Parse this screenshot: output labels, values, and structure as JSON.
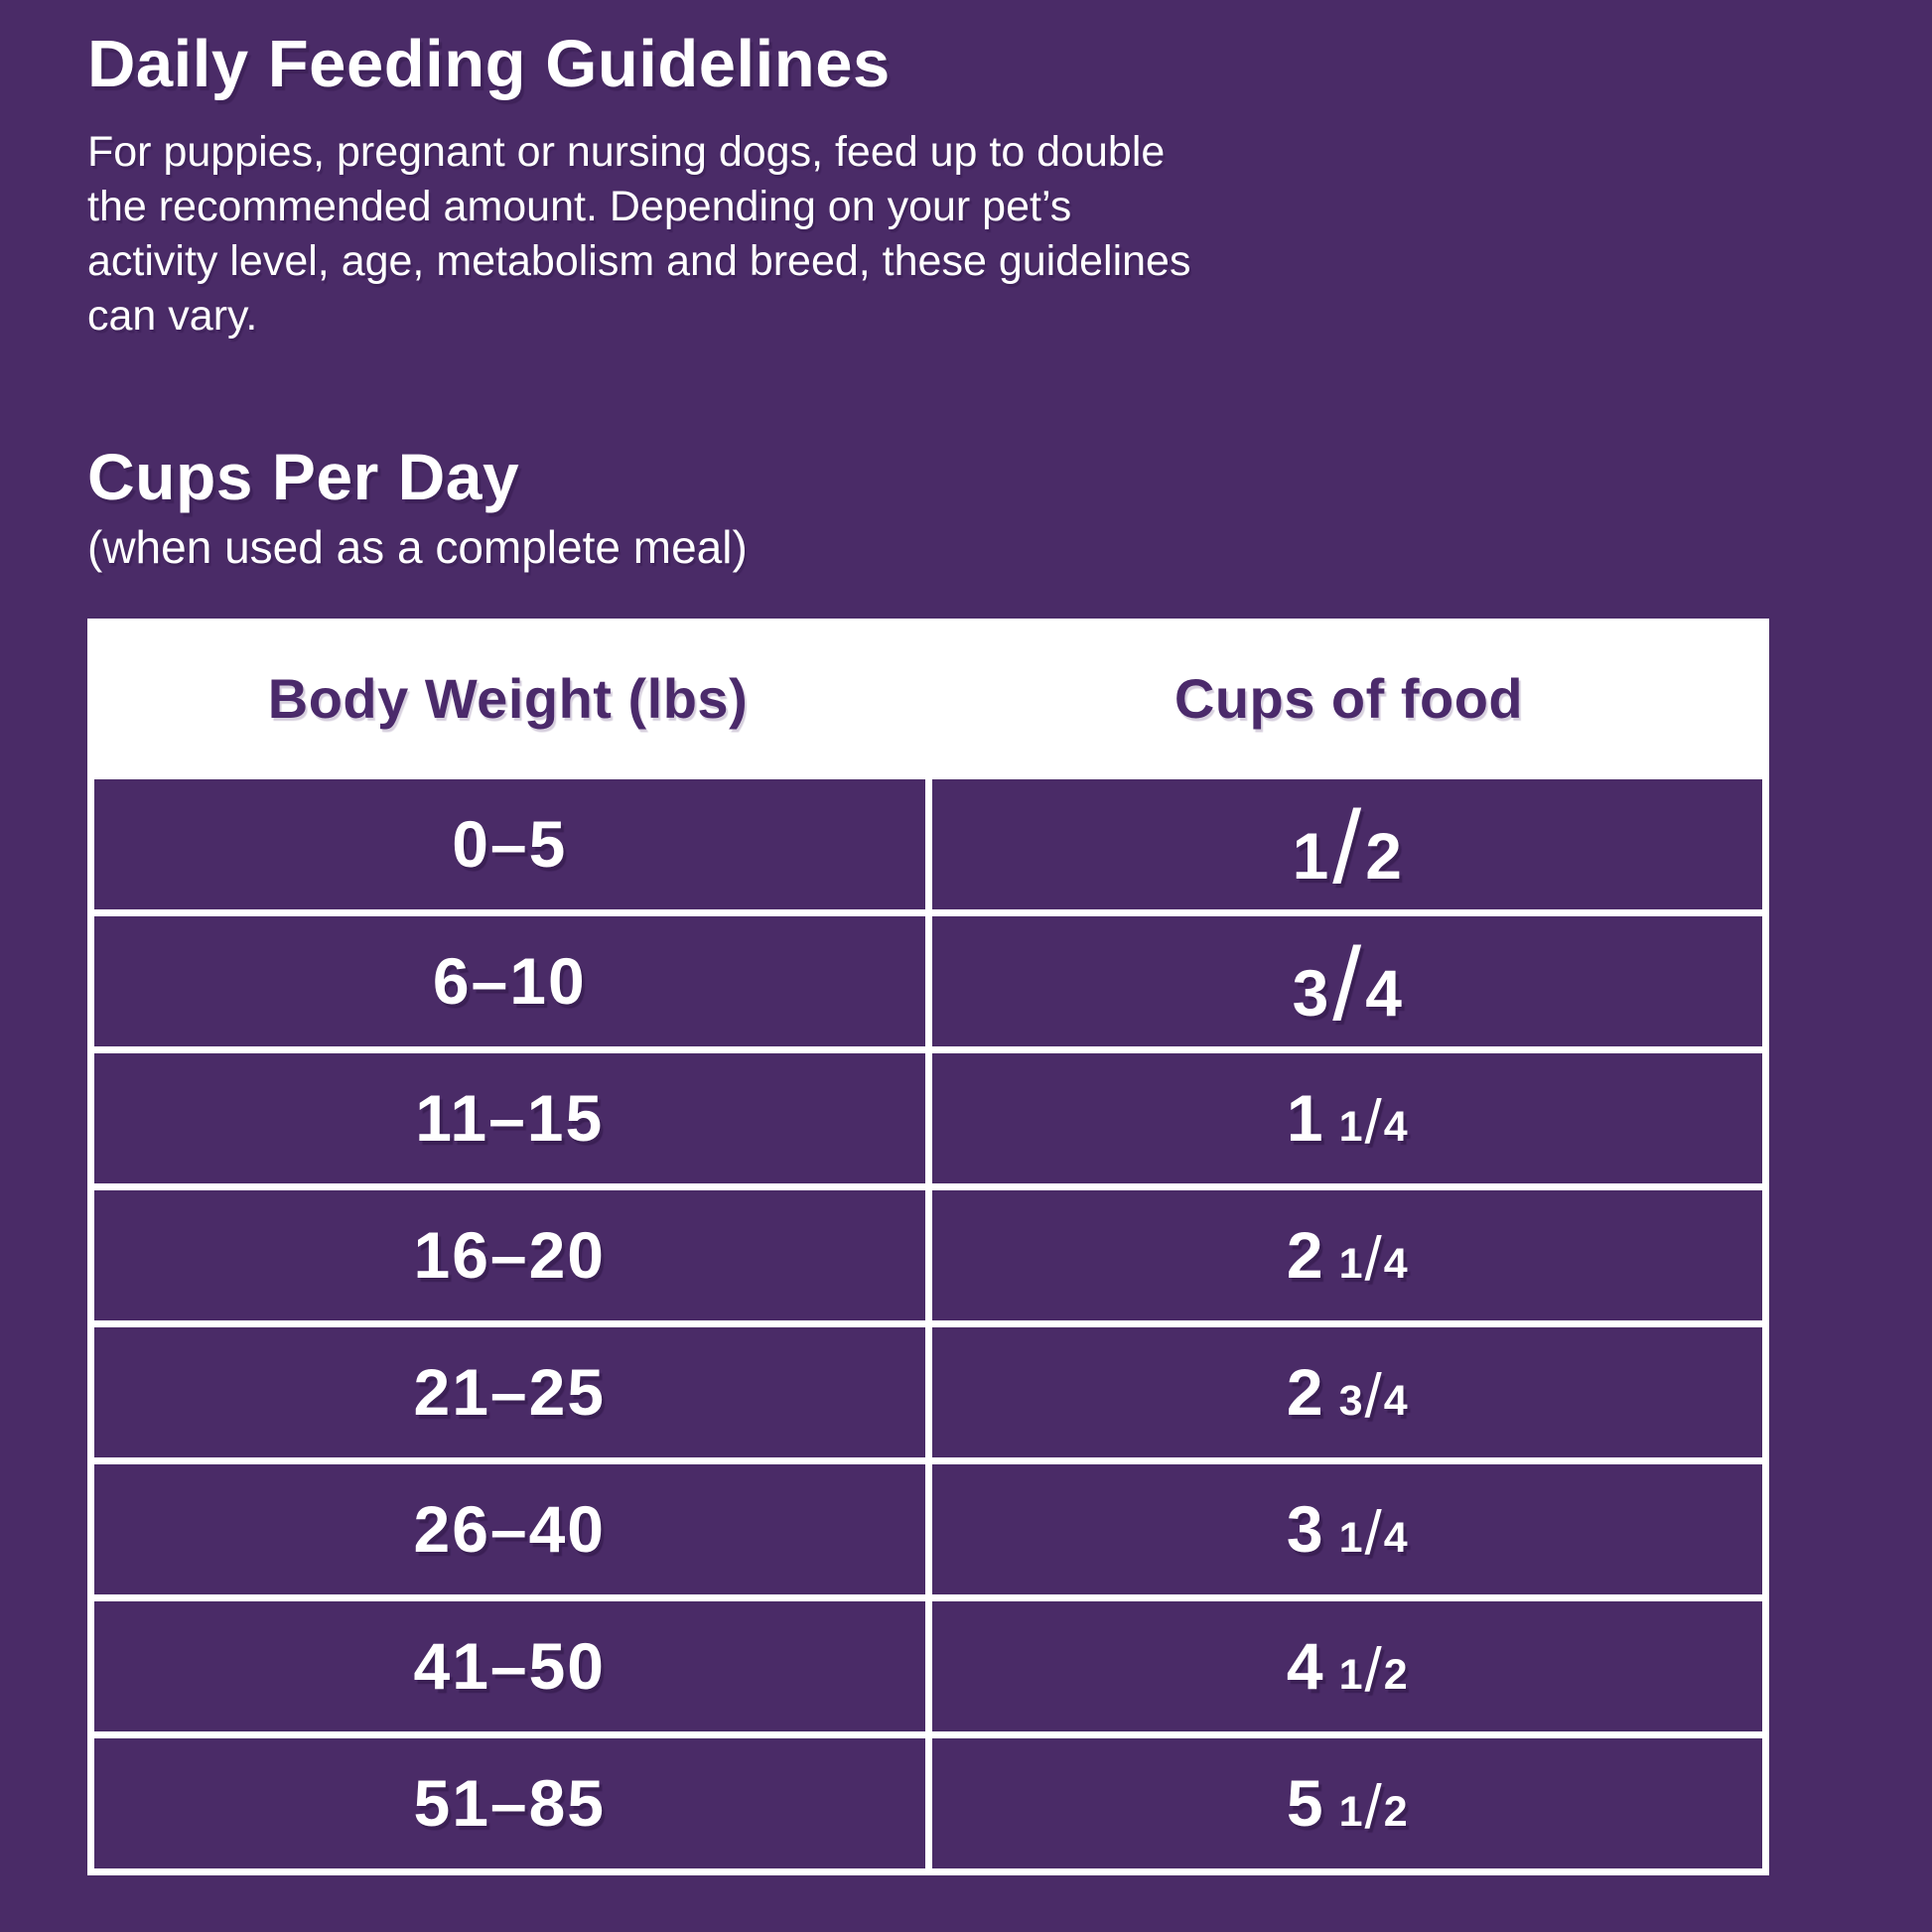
{
  "colors": {
    "background": "#4A2B67",
    "panel": "#FFFFFF",
    "header_text": "#4B2A6B",
    "body_text": "#FFFFFF"
  },
  "header": {
    "title": "Daily Feeding Guidelines",
    "intro_lines": [
      "For puppies, pregnant or nursing dogs, feed up to double",
      "the recommended amount. Depending on your pet’s",
      "activity level, age, metabolism and breed, these guidelines",
      "can vary."
    ]
  },
  "section": {
    "heading": "Cups Per Day",
    "subheading": "(when used as a complete meal)"
  },
  "table": {
    "columns": [
      "Body Weight (lbs)",
      "Cups of food"
    ],
    "rows": [
      {
        "weight": "0–5",
        "cups": {
          "whole": "",
          "num": "1",
          "den": "2"
        }
      },
      {
        "weight": "6–10",
        "cups": {
          "whole": "",
          "num": "3",
          "den": "4"
        }
      },
      {
        "weight": "11–15",
        "cups": {
          "whole": "1",
          "num": "1",
          "den": "4"
        }
      },
      {
        "weight": "16–20",
        "cups": {
          "whole": "2",
          "num": "1",
          "den": "4"
        }
      },
      {
        "weight": "21–25",
        "cups": {
          "whole": "2",
          "num": "3",
          "den": "4"
        }
      },
      {
        "weight": "26–40",
        "cups": {
          "whole": "3",
          "num": "1",
          "den": "4"
        }
      },
      {
        "weight": "41–50",
        "cups": {
          "whole": "4",
          "num": "1",
          "den": "2"
        }
      },
      {
        "weight": "51–85",
        "cups": {
          "whole": "5",
          "num": "1",
          "den": "2"
        }
      }
    ]
  }
}
